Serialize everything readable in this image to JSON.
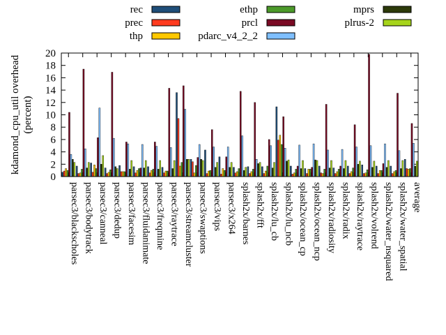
{
  "chart_data": {
    "type": "bar",
    "ylabel": "kdamond_cpu_util overhead\n(percent)",
    "ylim": [
      0,
      20
    ],
    "yticks": [
      0,
      2,
      4,
      6,
      8,
      10,
      12,
      14,
      16,
      18,
      20
    ],
    "legend_position": "top",
    "categories": [
      "parsec3/blackscholes",
      "parsec3/bodytrack",
      "parsec3/canneal",
      "parsec3/dedup",
      "parsec3/facesim",
      "parsec3/fluidanimate",
      "parsec3/freqmine",
      "parsec3/raytrace",
      "parsec3/streamcluster",
      "parsec3/swaptions",
      "parsec3/vips",
      "parsec3/x264",
      "splash2x/barnes",
      "splash2x/fft",
      "splash2x/lu_cb",
      "splash2x/lu_ncb",
      "splash2x/ocean_cp",
      "splash2x/ocean_ncp",
      "splash2x/radiosity",
      "splash2x/radix",
      "splash2x/raytrace",
      "splash2x/volrend",
      "splash2x/water_nsquared",
      "splash2x/water_spatial",
      "average"
    ],
    "series": [
      {
        "name": "rec",
        "color": "#1f4e79",
        "values": [
          0.7,
          1.7,
          2.2,
          1.4,
          1.8,
          1.6,
          1.6,
          1.5,
          13.6,
          2.8,
          4.3,
          3.2,
          1.5,
          1.6,
          1.6,
          11.3,
          1.7,
          1.3,
          1.7,
          1.4,
          1.7,
          1.9,
          1.7,
          1.7,
          2.8
        ]
      },
      {
        "name": "prec",
        "color": "#ff3b1f",
        "values": [
          0.9,
          0.5,
          0.7,
          0.5,
          0.8,
          0.6,
          0.6,
          0.6,
          9.4,
          2.4,
          0.5,
          0.4,
          0.6,
          0.5,
          0.5,
          5.9,
          0.4,
          0.5,
          0.6,
          0.5,
          0.5,
          0.5,
          0.5,
          0.5,
          1.3
        ]
      },
      {
        "name": "thp",
        "color": "#ffc800",
        "values": [
          1.3,
          0.6,
          1.9,
          0.7,
          0.8,
          1.0,
          1.0,
          0.9,
          1.7,
          0.6,
          0.9,
          1.3,
          0.8,
          0.8,
          0.9,
          6.7,
          0.6,
          1.2,
          0.5,
          0.8,
          0.8,
          0.6,
          1.0,
          0.8,
          1.2
        ]
      },
      {
        "name": "ethp",
        "color": "#4c9a2a",
        "values": [
          1.0,
          1.2,
          1.3,
          1.1,
          0.8,
          1.3,
          1.2,
          0.9,
          2.3,
          1.8,
          1.0,
          1.0,
          1.3,
          1.2,
          1.7,
          5.2,
          1.2,
          1.2,
          1.2,
          1.2,
          1.4,
          1.1,
          1.0,
          1.0,
          1.3
        ]
      },
      {
        "name": "prcl",
        "color": "#7a0a24",
        "values": [
          10.4,
          17.4,
          6.3,
          16.9,
          5.6,
          1.4,
          5.6,
          14.3,
          14.7,
          3.1,
          7.6,
          3.2,
          13.8,
          12.0,
          6.0,
          9.7,
          1.7,
          1.5,
          11.7,
          1.7,
          8.4,
          19.8,
          2.1,
          13.5,
          8.6
        ]
      },
      {
        "name": "pdarc_v4_2_2",
        "color": "#7fbfff",
        "values": [
          3.6,
          4.5,
          11.1,
          6.2,
          5.3,
          5.2,
          4.9,
          4.7,
          10.9,
          5.2,
          4.8,
          4.8,
          6.6,
          2.8,
          5.0,
          4.6,
          5.1,
          5.3,
          4.3,
          4.4,
          4.8,
          5.0,
          5.3,
          4.2,
          5.4
        ]
      },
      {
        "name": "mprs",
        "color": "#2d3a0a",
        "values": [
          2.8,
          1.4,
          2.0,
          1.6,
          1.2,
          1.4,
          1.2,
          1.3,
          2.8,
          2.8,
          1.5,
          1.5,
          1.0,
          2.1,
          1.4,
          2.5,
          1.3,
          2.7,
          1.4,
          1.3,
          2.0,
          1.5,
          1.5,
          1.3,
          1.7
        ]
      },
      {
        "name": "plrus-2",
        "color": "#a6d41b",
        "values": [
          2.3,
          2.3,
          3.4,
          1.3,
          2.6,
          2.6,
          2.6,
          2.6,
          2.8,
          2.6,
          2.3,
          2.3,
          1.5,
          2.3,
          2.3,
          2.7,
          2.6,
          2.6,
          2.6,
          2.6,
          2.5,
          2.5,
          2.6,
          2.6,
          2.5
        ]
      }
    ]
  }
}
